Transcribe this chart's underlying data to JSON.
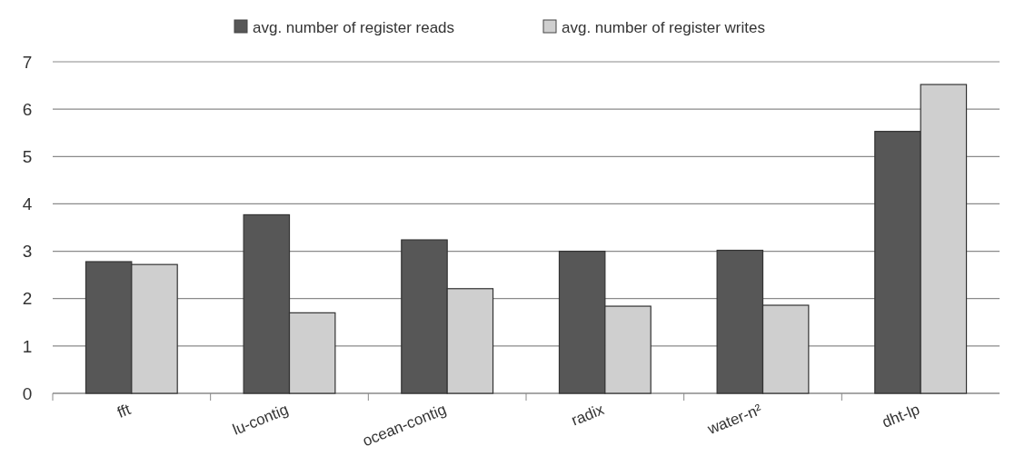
{
  "chart_data": {
    "type": "bar",
    "categories": [
      "fft",
      "lu-contig",
      "ocean-contig",
      "radix",
      "water-n²",
      "dht-lp"
    ],
    "series": [
      {
        "name": "avg. number of register reads",
        "color": "#575757",
        "values": [
          2.78,
          3.77,
          3.24,
          3.0,
          3.02,
          5.53
        ]
      },
      {
        "name": "avg. number of register writes",
        "color": "#cfcfcf",
        "values": [
          2.72,
          1.7,
          2.21,
          1.84,
          1.86,
          6.52
        ]
      }
    ],
    "ylim": [
      0,
      7
    ],
    "yticks": [
      0,
      1,
      2,
      3,
      4,
      5,
      6,
      7
    ],
    "grid": "y",
    "legend": "top"
  }
}
